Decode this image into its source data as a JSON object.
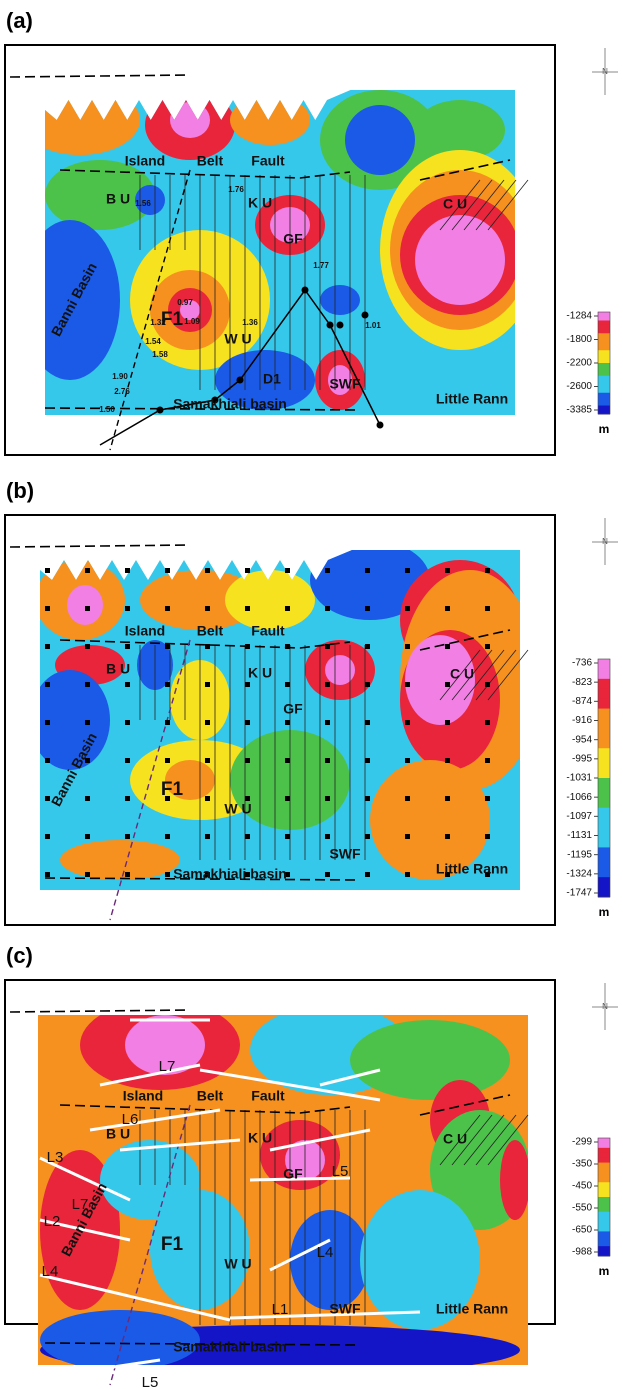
{
  "panels": [
    {
      "label": "(a)",
      "north": "N",
      "places": [
        "Island",
        "Belt",
        "Fault",
        "B U",
        "K U",
        "C U",
        "GF",
        "F1",
        "W U",
        "D1",
        "SWF",
        "Banni Basin",
        "Samakhiali basin",
        "Little Rann",
        "1.56",
        "1.76",
        "0.97",
        "1.32",
        "1.09",
        "1.36",
        "1.54",
        "1.58",
        "1.90",
        "1.01",
        "2.76",
        "1.77",
        "1.50"
      ],
      "colorbar": {
        "ticks": [
          -1284,
          -1800,
          -2200,
          -2600,
          -3385
        ],
        "unit": "m"
      }
    },
    {
      "label": "(b)",
      "north": "N",
      "places": [
        "Island",
        "Belt",
        "Fault",
        "B U",
        "K U",
        "C U",
        "GF",
        "F1",
        "W U",
        "SWF",
        "Banni Basin",
        "Samakhiali basin",
        "Little Rann"
      ],
      "colorbar": {
        "ticks": [
          -736,
          -823,
          -874,
          -916,
          -954,
          -995,
          -1031,
          -1066,
          -1097,
          -1131,
          -1195,
          -1324,
          -1747
        ],
        "unit": "m"
      }
    },
    {
      "label": "(c)",
      "north": "N",
      "places": [
        "Island",
        "Belt",
        "Fault",
        "B U",
        "K U",
        "C U",
        "GF",
        "F1",
        "W U",
        "SWF",
        "Banni Basin",
        "Samakhiali basin",
        "Little Rann",
        "L7",
        "L6",
        "L3",
        "L7",
        "L2",
        "L4",
        "L1",
        "L5",
        "L4",
        "L5"
      ],
      "colorbar": {
        "ticks": [
          -299,
          -350,
          -450,
          -550,
          -650,
          -988
        ],
        "unit": "m"
      }
    }
  ]
}
